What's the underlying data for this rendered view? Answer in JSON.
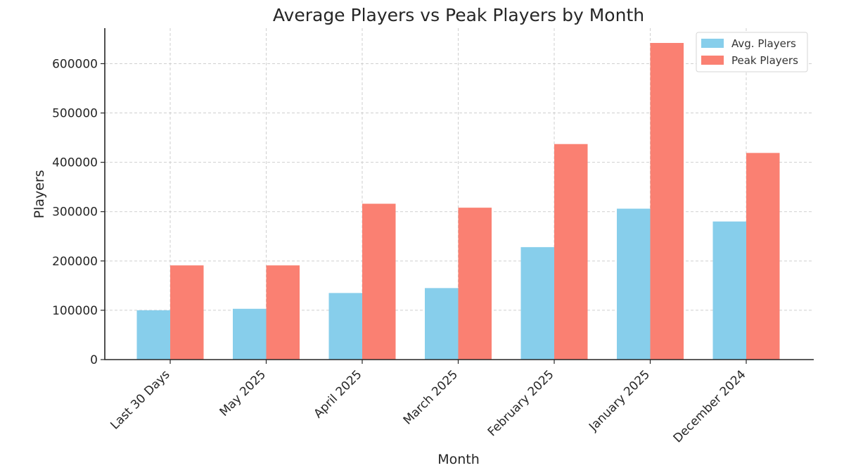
{
  "chart_data": {
    "type": "bar",
    "title": "Average Players vs Peak Players by Month",
    "xlabel": "Month",
    "ylabel": "Players",
    "categories": [
      "Last 30 Days",
      "May 2025",
      "April 2025",
      "March 2025",
      "February 2025",
      "January 2025",
      "December 2024"
    ],
    "series": [
      {
        "name": "Avg. Players",
        "color": "#87CEEB",
        "values": [
          100000,
          103000,
          135000,
          145000,
          228000,
          306000,
          280000
        ]
      },
      {
        "name": "Peak Players",
        "color": "#FA8072",
        "values": [
          191000,
          191000,
          316000,
          308000,
          437000,
          642000,
          419000
        ]
      }
    ],
    "ylim": [
      0,
      672000
    ],
    "yticks": [
      0,
      100000,
      200000,
      300000,
      400000,
      500000,
      600000
    ],
    "ytick_labels": [
      "0",
      "100000",
      "200000",
      "300000",
      "400000",
      "500000",
      "600000"
    ],
    "grid": true,
    "legend_position": "top-right"
  }
}
